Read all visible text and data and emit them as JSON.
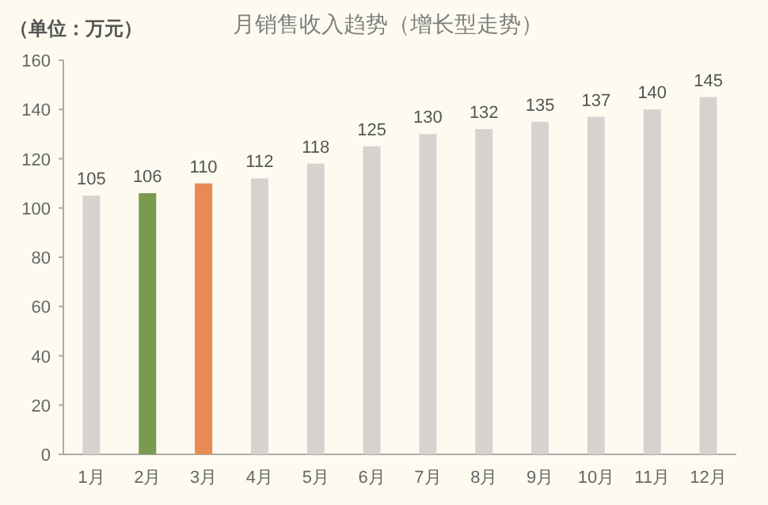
{
  "chart_data": {
    "type": "bar",
    "title": "月销售收入趋势（增长型走势）",
    "ylabel": "（单位：万元）",
    "categories": [
      "1月",
      "2月",
      "3月",
      "4月",
      "5月",
      "6月",
      "7月",
      "8月",
      "9月",
      "10月",
      "11月",
      "12月"
    ],
    "values": [
      105,
      106,
      110,
      112,
      118,
      125,
      130,
      132,
      135,
      137,
      140,
      145
    ],
    "colors": [
      "#d9d1d0",
      "#7a9a4e",
      "#e98a55",
      "#d9d1d0",
      "#d9d1d0",
      "#d9d1d0",
      "#d9d1d0",
      "#d9d1d0",
      "#d9d1d0",
      "#d9d1d0",
      "#d9d1d0",
      "#d9d1d0"
    ],
    "ylim": [
      0,
      160
    ],
    "yticks": [
      0,
      20,
      40,
      60,
      80,
      100,
      120,
      140,
      160
    ],
    "data_labels": true
  }
}
